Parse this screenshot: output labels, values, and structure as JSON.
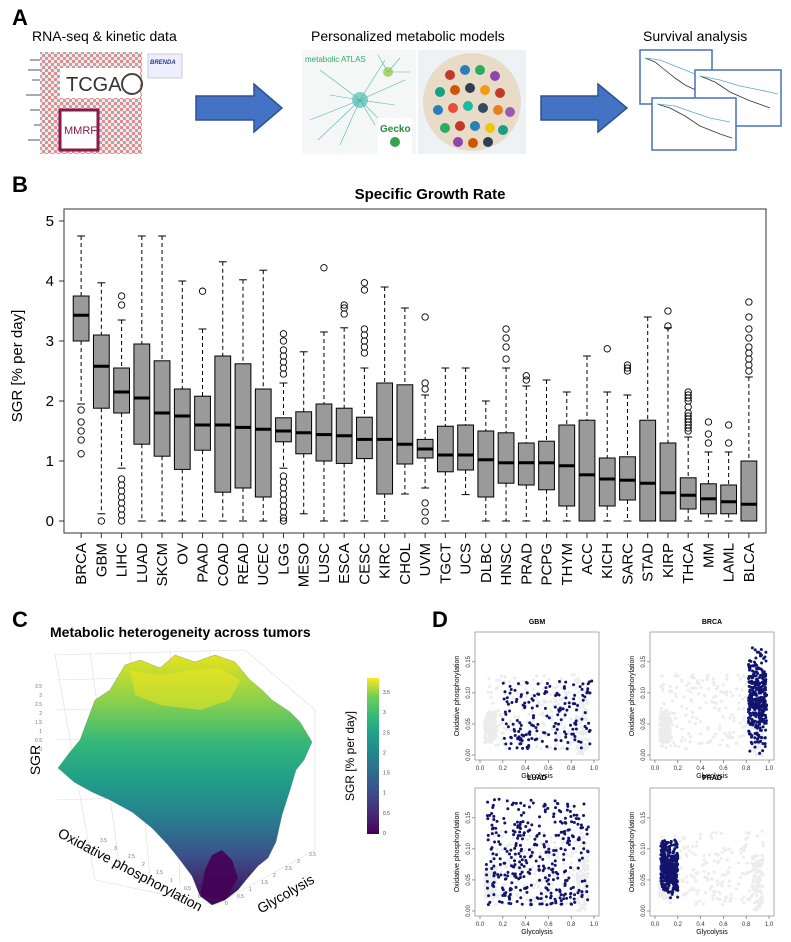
{
  "panels": {
    "A": {
      "letter": "A",
      "titles": [
        "RNA-seq & kinetic data",
        "Personalized metabolic models",
        "Survival analysis"
      ],
      "logos": [
        "TCGA",
        "BRENDA",
        "MMRF",
        "metabolic ATLAS",
        "Gecko"
      ]
    },
    "B": {
      "letter": "B"
    },
    "C": {
      "letter": "C",
      "title": "Metabolic heterogeneity across tumors"
    },
    "D": {
      "letter": "D"
    }
  },
  "chart_data": [
    {
      "type": "box",
      "title": "Specific Growth Rate",
      "ylabel": "SGR [% per day]",
      "ylim": [
        0,
        5
      ],
      "yticks": [
        0,
        1,
        2,
        3,
        4,
        5
      ],
      "fill_color": "#9a9a9a",
      "categories": [
        "BRCA",
        "GBM",
        "LIHC",
        "LUAD",
        "SKCM",
        "OV",
        "PAAD",
        "COAD",
        "READ",
        "UCEC",
        "LGG",
        "MESO",
        "LUSC",
        "ESCA",
        "CESC",
        "KIRC",
        "CHOL",
        "UVM",
        "TGCT",
        "UCS",
        "DLBC",
        "HNSC",
        "PRAD",
        "PCPG",
        "THYM",
        "ACC",
        "KICH",
        "SARC",
        "STAD",
        "KIRP",
        "THCA",
        "MM",
        "LAML",
        "BLCA"
      ],
      "boxes": [
        {
          "min": 1.95,
          "q1": 3.0,
          "median": 3.43,
          "q3": 3.75,
          "max": 4.75
        },
        {
          "min": 0.12,
          "q1": 1.88,
          "median": 2.58,
          "q3": 3.1,
          "max": 3.97
        },
        {
          "min": 0.88,
          "q1": 1.8,
          "median": 2.15,
          "q3": 2.55,
          "max": 3.35
        },
        {
          "min": 0.0,
          "q1": 1.28,
          "median": 2.05,
          "q3": 2.95,
          "max": 4.75
        },
        {
          "min": 0.0,
          "q1": 1.08,
          "median": 1.8,
          "q3": 2.67,
          "max": 4.75
        },
        {
          "min": 0.0,
          "q1": 0.86,
          "median": 1.75,
          "q3": 2.2,
          "max": 4.0
        },
        {
          "min": 0.0,
          "q1": 1.18,
          "median": 1.6,
          "q3": 2.08,
          "max": 3.2
        },
        {
          "min": 0.0,
          "q1": 0.48,
          "median": 1.6,
          "q3": 2.75,
          "max": 4.32
        },
        {
          "min": 0.0,
          "q1": 0.55,
          "median": 1.56,
          "q3": 2.62,
          "max": 4.02
        },
        {
          "min": 0.0,
          "q1": 0.4,
          "median": 1.53,
          "q3": 2.2,
          "max": 4.18
        },
        {
          "min": 0.88,
          "q1": 1.32,
          "median": 1.5,
          "q3": 1.72,
          "max": 2.3
        },
        {
          "min": 0.12,
          "q1": 1.12,
          "median": 1.47,
          "q3": 1.82,
          "max": 2.82
        },
        {
          "min": 0.0,
          "q1": 1.0,
          "median": 1.44,
          "q3": 1.95,
          "max": 3.15
        },
        {
          "min": 0.0,
          "q1": 0.96,
          "median": 1.42,
          "q3": 1.88,
          "max": 3.22
        },
        {
          "min": 0.0,
          "q1": 1.04,
          "median": 1.36,
          "q3": 1.73,
          "max": 2.55
        },
        {
          "min": 0.0,
          "q1": 0.45,
          "median": 1.36,
          "q3": 2.3,
          "max": 3.9
        },
        {
          "min": 0.45,
          "q1": 0.95,
          "median": 1.28,
          "q3": 2.27,
          "max": 3.55
        },
        {
          "min": 0.55,
          "q1": 1.05,
          "median": 1.2,
          "q3": 1.36,
          "max": 2.1
        },
        {
          "min": 0.0,
          "q1": 0.82,
          "median": 1.1,
          "q3": 1.58,
          "max": 2.55
        },
        {
          "min": 0.44,
          "q1": 0.85,
          "median": 1.1,
          "q3": 1.6,
          "max": 2.55
        },
        {
          "min": 0.0,
          "q1": 0.4,
          "median": 1.02,
          "q3": 1.5,
          "max": 2.0
        },
        {
          "min": 0.0,
          "q1": 0.63,
          "median": 0.97,
          "q3": 1.47,
          "max": 2.55
        },
        {
          "min": 0.0,
          "q1": 0.6,
          "median": 0.97,
          "q3": 1.3,
          "max": 2.25
        },
        {
          "min": 0.0,
          "q1": 0.52,
          "median": 0.97,
          "q3": 1.33,
          "max": 2.35
        },
        {
          "min": 0.0,
          "q1": 0.25,
          "median": 0.92,
          "q3": 1.6,
          "max": 2.15
        },
        {
          "min": 0.0,
          "q1": 0.0,
          "median": 0.77,
          "q3": 1.68,
          "max": 2.75
        },
        {
          "min": 0.0,
          "q1": 0.25,
          "median": 0.7,
          "q3": 1.05,
          "max": 2.15
        },
        {
          "min": 0.0,
          "q1": 0.35,
          "median": 0.68,
          "q3": 1.07,
          "max": 2.1
        },
        {
          "min": 0.0,
          "q1": 0.0,
          "median": 0.63,
          "q3": 1.68,
          "max": 3.4
        },
        {
          "min": 0.0,
          "q1": 0.0,
          "median": 0.47,
          "q3": 1.3,
          "max": 3.22
        },
        {
          "min": 0.0,
          "q1": 0.2,
          "median": 0.43,
          "q3": 0.72,
          "max": 1.4
        },
        {
          "min": 0.0,
          "q1": 0.12,
          "median": 0.37,
          "q3": 0.62,
          "max": 1.15
        },
        {
          "min": 0.0,
          "q1": 0.12,
          "median": 0.32,
          "q3": 0.6,
          "max": 1.15
        },
        {
          "min": 0.0,
          "q1": 0.0,
          "median": 0.28,
          "q3": 1.0,
          "max": 2.4
        }
      ],
      "outliers": [
        [
          1.12,
          1.35,
          1.5,
          1.65,
          1.85
        ],
        [
          0.0
        ],
        [
          0.0,
          0.1,
          0.2,
          0.3,
          0.4,
          0.5,
          0.6,
          0.7,
          3.6,
          3.75
        ],
        [],
        [],
        [],
        [
          3.83
        ],
        [],
        [],
        [],
        [
          0.0,
          0.05,
          0.15,
          0.25,
          0.35,
          0.45,
          0.55,
          0.65,
          0.75,
          2.45,
          2.55,
          2.65,
          2.75,
          2.85,
          3.0,
          3.12
        ],
        [],
        [
          4.22
        ],
        [
          3.45,
          3.55,
          3.6
        ],
        [
          2.8,
          2.9,
          3.0,
          3.1,
          3.2,
          3.85,
          3.97
        ],
        [],
        [],
        [
          0.0,
          0.15,
          0.3,
          2.2,
          2.3,
          3.4
        ],
        [],
        [],
        [],
        [
          2.7,
          2.9,
          3.05,
          3.2
        ],
        [
          2.35,
          2.42
        ],
        [],
        [],
        [],
        [
          2.87
        ],
        [
          2.5,
          2.55,
          2.6
        ],
        [],
        [
          3.25,
          3.5
        ],
        [
          1.5,
          1.55,
          1.6,
          1.65,
          1.7,
          1.75,
          1.8,
          1.9,
          2.0,
          2.05,
          2.1,
          2.15
        ],
        [
          1.3,
          1.45,
          1.65
        ],
        [
          1.3,
          1.6
        ],
        [
          2.5,
          2.6,
          2.7,
          2.8,
          2.9,
          3.05,
          3.2,
          3.4,
          3.65
        ]
      ]
    },
    {
      "type": "surface",
      "xlabel": "Glycolysis",
      "ylabel": "Oxidative phosphorylation",
      "zlabel": "SGR",
      "colorbar_label": "SGR [% per day]",
      "colorbar_ticks": [
        0,
        0.5,
        1,
        1.5,
        2,
        2.5,
        3,
        3.5
      ],
      "colormap": "viridis",
      "axis_ticks": [
        "0",
        "0.5",
        "1",
        "1.5",
        "2",
        "2.5",
        "3",
        "3.5"
      ]
    },
    {
      "type": "scatter",
      "panels": [
        {
          "title": "GBM",
          "xlabel": "Glycolysis",
          "ylabel": "Oxidative phosphorylation",
          "xlim": [
            0,
            1
          ],
          "ylim": [
            0,
            0.19
          ],
          "xticks": [
            "0.0",
            "0.2",
            "0.4",
            "0.6",
            "0.8",
            "1.0"
          ],
          "yticks": [
            "0.00",
            "0.05",
            "0.10",
            "0.15"
          ],
          "cluster": {
            "x_range": [
              0.2,
              0.98
            ],
            "y_range": [
              0.01,
              0.12
            ],
            "n": 180
          }
        },
        {
          "title": "BRCA",
          "xlabel": "Glycolysis",
          "ylabel": "Oxidative phosphorylation",
          "xlim": [
            0,
            1
          ],
          "ylim": [
            0,
            0.19
          ],
          "xticks": [
            "0.0",
            "0.2",
            "0.4",
            "0.6",
            "0.8",
            "1.0"
          ],
          "yticks": [
            "0.00",
            "0.05",
            "0.10",
            "0.15"
          ],
          "cluster": {
            "x_range": [
              0.82,
              0.98
            ],
            "y_range": [
              0.0,
              0.18
            ],
            "n": 700
          }
        },
        {
          "title": "LUAD",
          "xlabel": "Glycolysis",
          "ylabel": "Oxidative phosphorylation",
          "xlim": [
            0,
            1
          ],
          "ylim": [
            0,
            0.19
          ],
          "xticks": [
            "0.0",
            "0.2",
            "0.4",
            "0.6",
            "0.8",
            "1.0"
          ],
          "yticks": [
            "0.00",
            "0.05",
            "0.10",
            "0.15"
          ],
          "cluster": {
            "x_range": [
              0.05,
              0.95
            ],
            "y_range": [
              0.01,
              0.18
            ],
            "n": 520
          }
        },
        {
          "title": "PRAD",
          "xlabel": "Glycolysis",
          "ylabel": "Oxidative phosphorylation",
          "xlim": [
            0,
            1
          ],
          "ylim": [
            0,
            0.19
          ],
          "xticks": [
            "0.0",
            "0.2",
            "0.4",
            "0.6",
            "0.8",
            "1.0"
          ],
          "yticks": [
            "0.00",
            "0.05",
            "0.10",
            "0.15"
          ],
          "cluster": {
            "x_range": [
              0.05,
              0.2
            ],
            "y_range": [
              0.02,
              0.12
            ],
            "n": 420
          }
        }
      ],
      "point_color": "#12146e",
      "background_color": "#000000"
    }
  ]
}
